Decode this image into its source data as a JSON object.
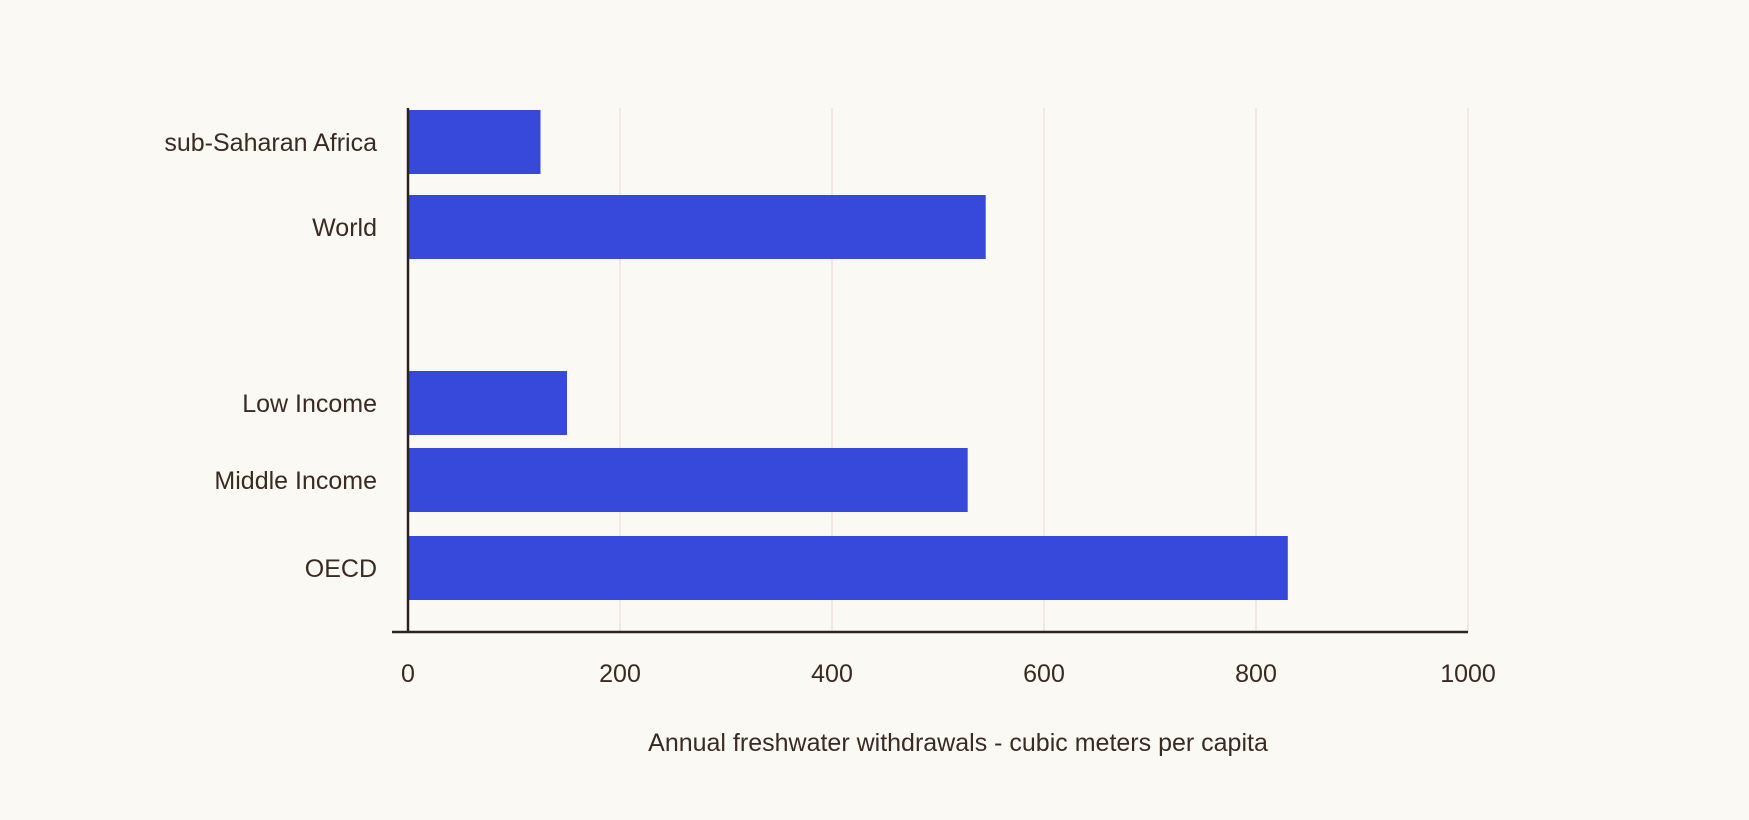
{
  "chart_data": {
    "type": "bar",
    "orientation": "horizontal",
    "title": "",
    "xlabel": "Annual freshwater withdrawals - cubic meters per capita",
    "ylabel": "",
    "xlim": [
      0,
      1000
    ],
    "xticks": [
      0,
      200,
      400,
      600,
      800,
      1000
    ],
    "tick_labels": [
      "0",
      "200",
      "400",
      "600",
      "800",
      "1000"
    ],
    "grid": "vertical",
    "categories": [
      "sub-Saharan Africa",
      "World",
      "Low Income",
      "Middle Income",
      "OECD"
    ],
    "values": [
      125,
      545,
      150,
      528,
      830
    ],
    "bar_color": "#3649db",
    "grid_color": "#f3dede",
    "axis_color": "#2b2420",
    "text_color": "#3a2a22"
  }
}
